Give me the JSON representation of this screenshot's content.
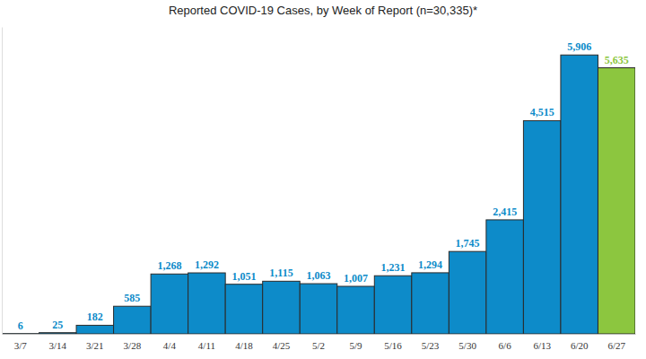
{
  "chart_data": {
    "type": "bar",
    "title": "Reported COVID-19 Cases, by Week of Report (n=30,335)*",
    "categories": [
      "3/7",
      "3/14",
      "3/21",
      "3/28",
      "4/4",
      "4/11",
      "4/18",
      "4/25",
      "5/2",
      "5/9",
      "5/16",
      "5/23",
      "5/30",
      "6/6",
      "6/13",
      "6/20",
      "6/27"
    ],
    "values": [
      6,
      25,
      182,
      585,
      1268,
      1292,
      1051,
      1115,
      1063,
      1007,
      1231,
      1294,
      1745,
      2415,
      4515,
      5906,
      5635
    ],
    "value_labels": [
      "6",
      "25",
      "182",
      "585",
      "1,268",
      "1,292",
      "1,051",
      "1,115",
      "1,063",
      "1,007",
      "1,231",
      "1,294",
      "1,745",
      "2,415",
      "4,515",
      "5,906",
      "5,635"
    ],
    "colors": [
      "#0d8bc9",
      "#0d8bc9",
      "#0d8bc9",
      "#0d8bc9",
      "#0d8bc9",
      "#0d8bc9",
      "#0d8bc9",
      "#0d8bc9",
      "#0d8bc9",
      "#0d8bc9",
      "#0d8bc9",
      "#0d8bc9",
      "#0d8bc9",
      "#0d8bc9",
      "#0d8bc9",
      "#0d8bc9",
      "#8cc63f"
    ],
    "ylim": [
      0,
      6500
    ],
    "data_labels": true,
    "tick_labels": "x",
    "grid": false
  }
}
